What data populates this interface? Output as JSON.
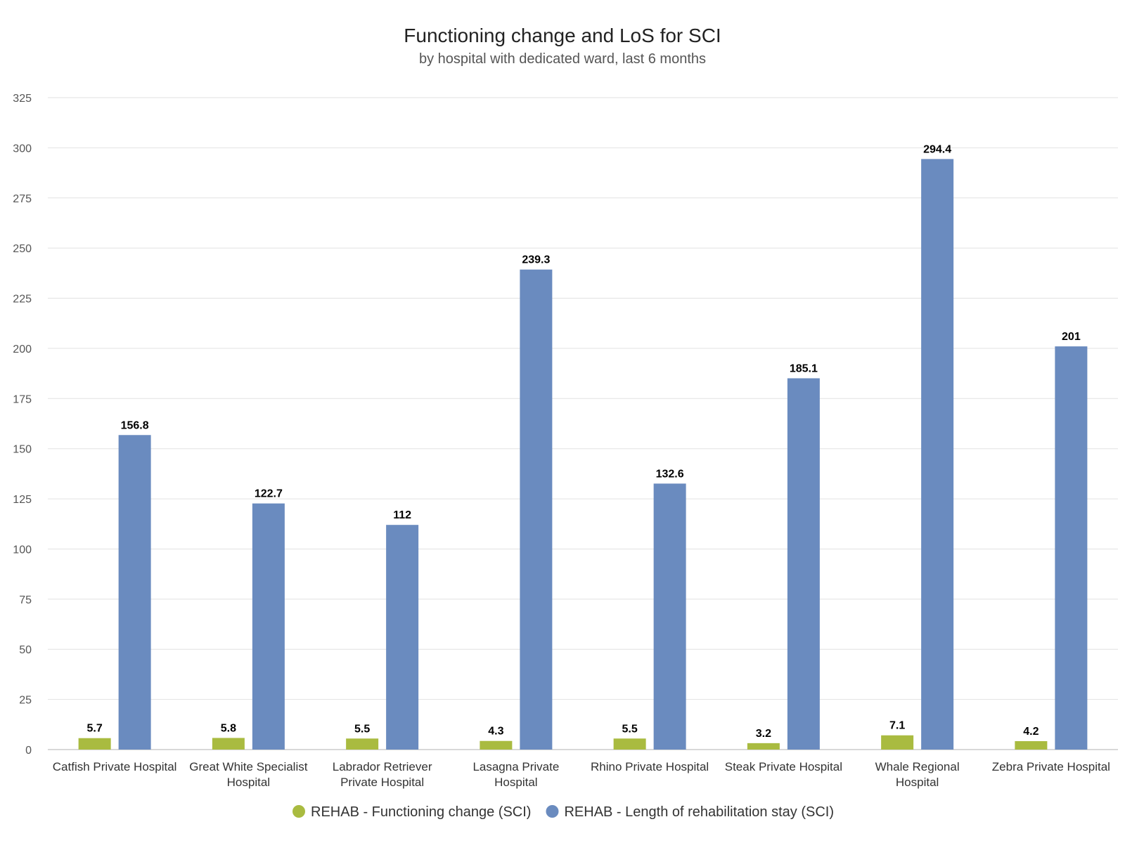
{
  "chart_data": {
    "type": "bar",
    "title": "Functioning change and LoS for SCI",
    "subtitle": "by hospital with dedicated ward, last 6 months",
    "xlabel": "",
    "ylabel": "",
    "ylim": [
      0,
      325
    ],
    "yticks": [
      0,
      25,
      50,
      75,
      100,
      125,
      150,
      175,
      200,
      225,
      250,
      275,
      300,
      325
    ],
    "grid": true,
    "legend_position": "bottom-center",
    "categories": [
      [
        "Catfish Private Hospital"
      ],
      [
        "Great White Specialist",
        "Hospital"
      ],
      [
        "Labrador Retriever",
        "Private Hospital"
      ],
      [
        "Lasagna Private",
        "Hospital"
      ],
      [
        "Rhino Private Hospital"
      ],
      [
        "Steak Private Hospital"
      ],
      [
        "Whale Regional",
        "Hospital"
      ],
      [
        "Zebra Private Hospital"
      ]
    ],
    "series": [
      {
        "name": "REHAB - Functioning change (SCI)",
        "color": "#a9bb40",
        "values": [
          5.7,
          5.8,
          5.5,
          4.3,
          5.5,
          3.2,
          7.1,
          4.2
        ]
      },
      {
        "name": "REHAB - Length of rehabilitation stay (SCI)",
        "color": "#6a8bbf",
        "values": [
          156.8,
          122.7,
          112,
          239.3,
          132.6,
          185.1,
          294.4,
          201
        ]
      }
    ]
  }
}
